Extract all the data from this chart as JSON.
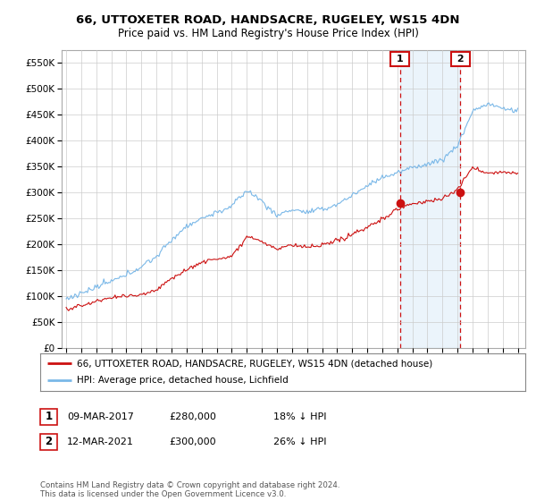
{
  "title": "66, UTTOXETER ROAD, HANDSACRE, RUGELEY, WS15 4DN",
  "subtitle": "Price paid vs. HM Land Registry's House Price Index (HPI)",
  "ylabel_ticks": [
    "£0",
    "£50K",
    "£100K",
    "£150K",
    "£200K",
    "£250K",
    "£300K",
    "£350K",
    "£400K",
    "£450K",
    "£500K",
    "£550K"
  ],
  "ytick_values": [
    0,
    50000,
    100000,
    150000,
    200000,
    250000,
    300000,
    350000,
    400000,
    450000,
    500000,
    550000
  ],
  "ylim_top": 575000,
  "xlim_start": 1994.7,
  "xlim_end": 2025.5,
  "legend_line1": "66, UTTOXETER ROAD, HANDSACRE, RUGELEY, WS15 4DN (detached house)",
  "legend_line2": "HPI: Average price, detached house, Lichfield",
  "sale1_date": 2017.19,
  "sale1_price": 280000,
  "sale2_date": 2021.19,
  "sale2_price": 300000,
  "footer": "Contains HM Land Registry data © Crown copyright and database right 2024.\nThis data is licensed under the Open Government Licence v3.0.",
  "hpi_color": "#7ab8e8",
  "hpi_shade_color": "#ddeeff",
  "property_color": "#cc1111",
  "vline_color": "#cc1111",
  "background_color": "#ffffff",
  "grid_color": "#cccccc"
}
